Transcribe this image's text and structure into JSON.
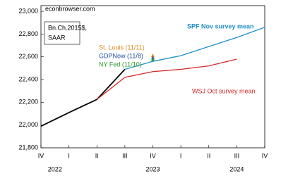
{
  "chart_data": {
    "type": "line",
    "source": "econbrowser.com",
    "units_lines": [
      "Bn.Ch.2015$,",
      "SAAR"
    ],
    "categories": [
      "IV",
      "I",
      "II",
      "III",
      "IV",
      "I",
      "II",
      "III",
      "IV"
    ],
    "year_labels": [
      "2022",
      "2023",
      "2024"
    ],
    "ylim": [
      21800,
      23050
    ],
    "yticks": [
      {
        "value": 21800,
        "label": "21,800"
      },
      {
        "value": 22000,
        "label": "22,000"
      },
      {
        "value": 22200,
        "label": "22,200"
      },
      {
        "value": 22400,
        "label": "22,400"
      },
      {
        "value": 22600,
        "label": "22,600"
      },
      {
        "value": 22800,
        "label": "22,800"
      },
      {
        "value": 23000,
        "label": "23,000"
      }
    ],
    "series": [
      {
        "color": "#000000",
        "values": [
          21990,
          22110,
          22225,
          22490,
          null,
          null,
          null,
          null,
          null
        ]
      },
      {
        "name": "SPF Nov survey mean",
        "color": "#1f8fc8",
        "values": [
          null,
          null,
          null,
          22490,
          22560,
          22610,
          22690,
          22770,
          22860
        ]
      },
      {
        "name": "WSJ Oct survey mean",
        "color": "#d62728",
        "values": [
          null,
          null,
          22225,
          22420,
          22470,
          22490,
          22520,
          22580,
          null
        ]
      },
      {
        "name": "St. Louis (11/11)",
        "color": "#e08a1e",
        "marker": true,
        "values": [
          null,
          null,
          null,
          null,
          22610,
          null,
          null,
          null,
          null
        ]
      },
      {
        "name": "GDPNow (11/8)",
        "color": "#1f4fa0",
        "marker": true,
        "values": [
          null,
          null,
          null,
          null,
          22590,
          null,
          null,
          null,
          null
        ]
      },
      {
        "name": "NY Fed (11/10)",
        "color": "#2ca02c",
        "marker": true,
        "values": [
          null,
          null,
          null,
          null,
          22575,
          null,
          null,
          null,
          null
        ]
      }
    ]
  }
}
